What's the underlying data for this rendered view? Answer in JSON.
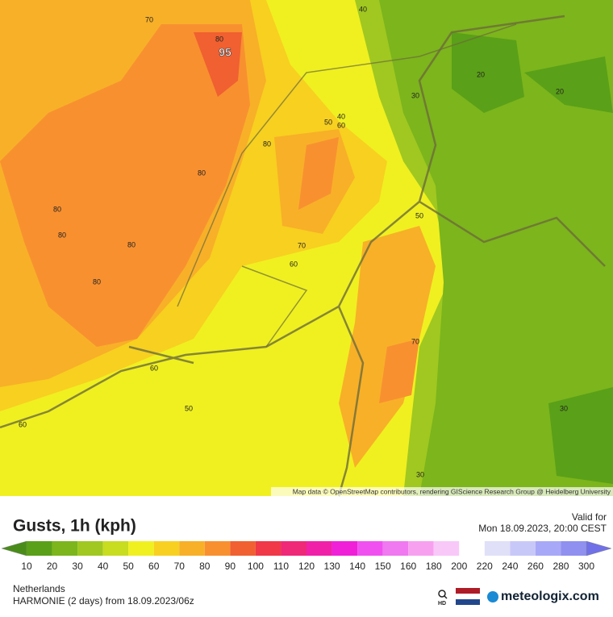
{
  "map": {
    "attribution": "Map data © OpenStreetMap contributors, rendering GIScience Research Group @ Heidelberg University",
    "contour_labels": [
      70,
      40,
      80,
      95,
      20,
      20,
      30,
      40,
      50,
      60,
      80,
      80,
      80,
      80,
      80,
      50,
      70,
      60,
      80,
      70,
      60,
      50,
      60,
      30,
      30
    ]
  },
  "legend": {
    "title": "Gusts, 1h (kph)",
    "valid_label": "Valid for",
    "valid_time": "Mon 18.09.2023, 20:00 CEST",
    "labels": [
      10,
      20,
      30,
      40,
      50,
      60,
      70,
      80,
      90,
      100,
      110,
      120,
      130,
      140,
      150,
      160,
      180,
      200,
      220,
      240,
      260,
      280,
      300
    ],
    "colors": [
      "#4a8c1a",
      "#5aa018",
      "#7cb51c",
      "#a0c820",
      "#c8dc20",
      "#f0f020",
      "#f8d020",
      "#f8b028",
      "#f89030",
      "#f06030",
      "#f03848",
      "#f02878",
      "#f020a8",
      "#f020d8",
      "#f050f0",
      "#f078f0",
      "#f8a0f0",
      "#f8c8f8",
      "#ffffff",
      "#e0e0f8",
      "#c8c8f8",
      "#a8a8f8",
      "#9090f0",
      "#7070e8"
    ]
  },
  "footer": {
    "region": "Netherlands",
    "model": "HARMONIE (2 days) from  18.09.2023/06z",
    "hd": "HD",
    "brand": "meteologix.com"
  }
}
